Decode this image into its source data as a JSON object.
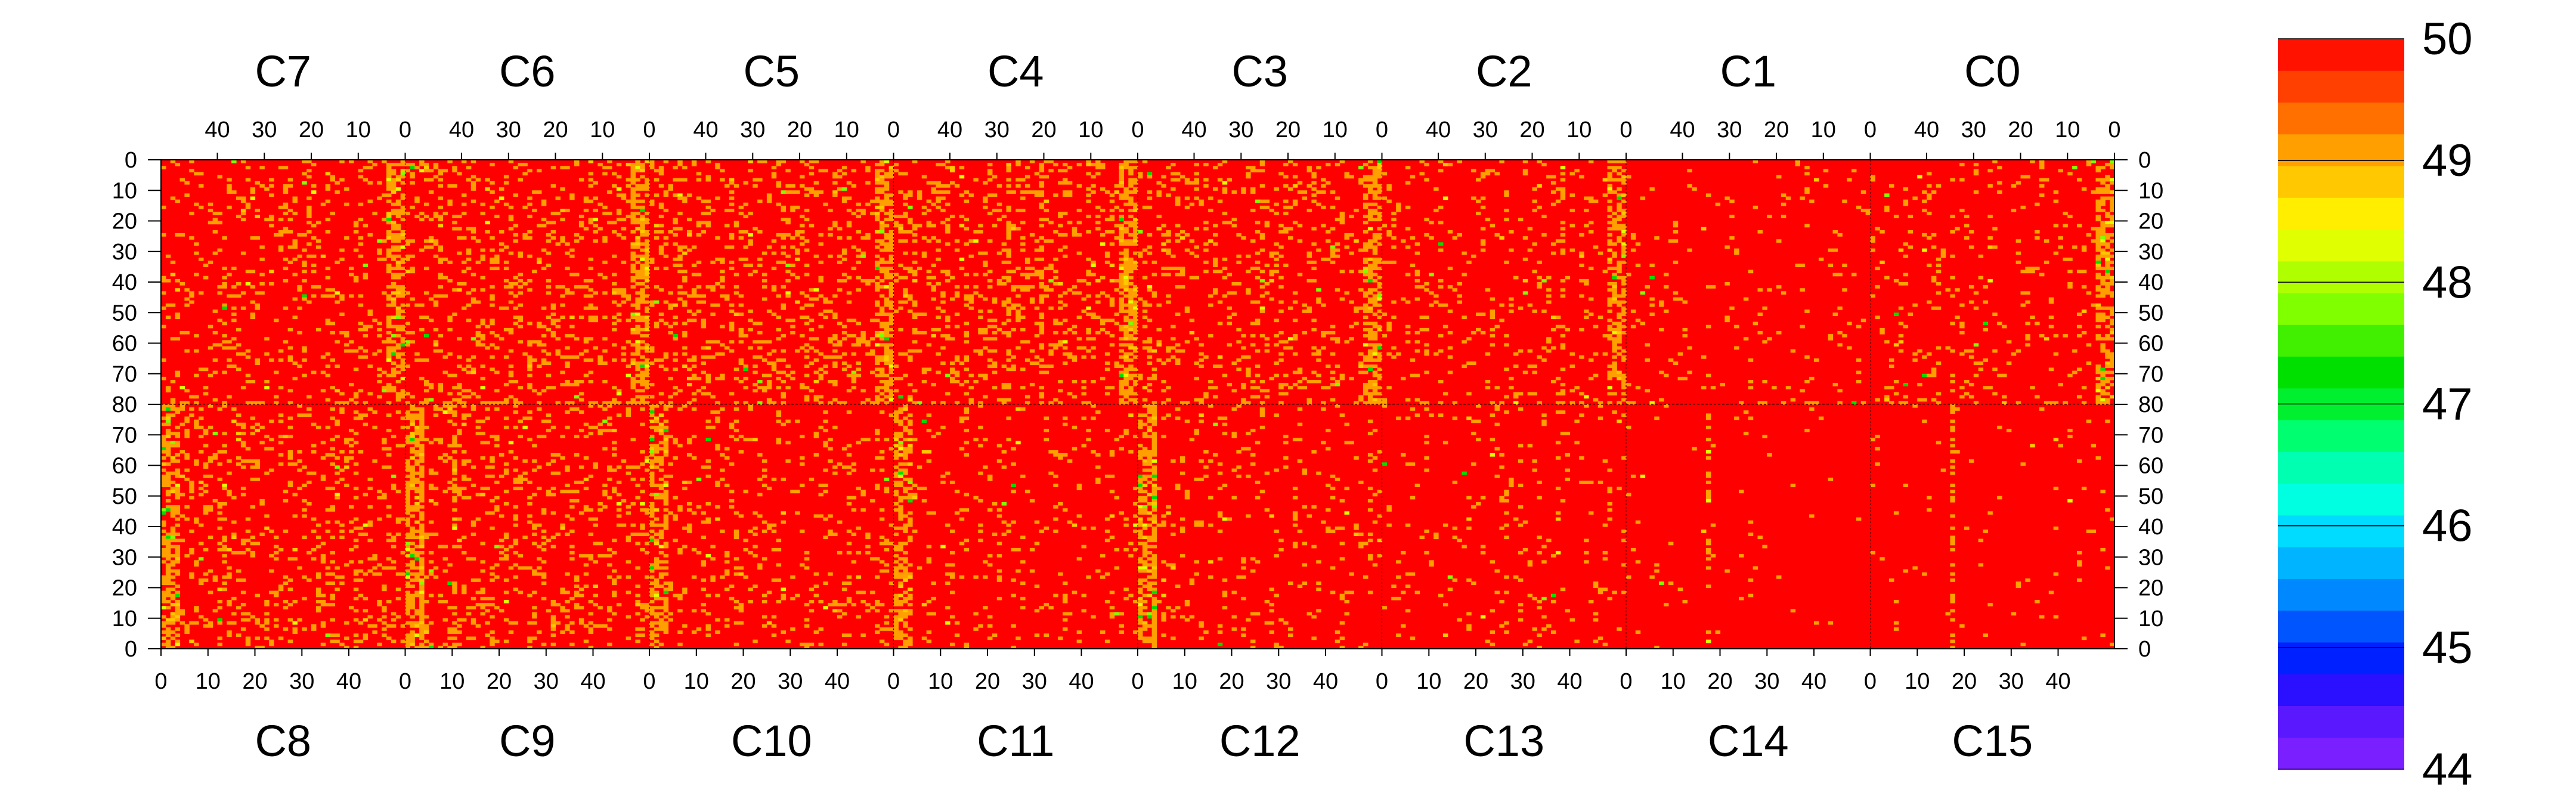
{
  "chart_data": {
    "type": "heatmap",
    "title": "",
    "xlabel": "",
    "ylabel": "",
    "panel_rows": [
      {
        "position": "top",
        "chips": [
          "C7",
          "C6",
          "C5",
          "C4",
          "C3",
          "C2",
          "C1",
          "C0"
        ],
        "x_axis_direction": "decreasing",
        "x_tick_labels": [
          "40",
          "30",
          "20",
          "10",
          "0"
        ],
        "y_tick_labels": [
          "0",
          "10",
          "20",
          "30",
          "40",
          "50",
          "60",
          "70",
          "80"
        ],
        "y_axis_direction": "increasing-downward"
      },
      {
        "position": "bottom",
        "chips": [
          "C8",
          "C9",
          "C10",
          "C11",
          "C12",
          "C13",
          "C14",
          "C15"
        ],
        "x_axis_direction": "increasing",
        "x_tick_labels": [
          "0",
          "10",
          "20",
          "30",
          "40"
        ],
        "y_tick_labels": [
          "80",
          "70",
          "60",
          "50",
          "40",
          "30",
          "20",
          "10",
          "0"
        ],
        "y_axis_direction": "decreasing-downward"
      }
    ],
    "columns_per_chip": 52,
    "rows_per_half": 80,
    "colorbar": {
      "min": 44,
      "max": 50,
      "tick_labels": [
        "50",
        "49",
        "48",
        "47",
        "46",
        "45",
        "44"
      ],
      "colors": [
        "#7a1fff",
        "#5a18ff",
        "#2a10ff",
        "#0020ff",
        "#0055ff",
        "#0088ff",
        "#00b4ff",
        "#00dcff",
        "#00ffe0",
        "#00ffb0",
        "#00ff70",
        "#00f030",
        "#00e000",
        "#40f000",
        "#80ff00",
        "#b0ff00",
        "#e0ff00",
        "#ffee00",
        "#ffc800",
        "#ffa000",
        "#ff7000",
        "#ff4000",
        "#ff1200"
      ],
      "dominant_color": "#ff0000",
      "secondary_color": "#ffa000"
    },
    "notes_visible": {
      "noisy_columns": "orange/green speckle concentrated near chip-boundary columns",
      "quiet_regions": "C1, C14, C15, C13 mostly uniform red"
    }
  }
}
